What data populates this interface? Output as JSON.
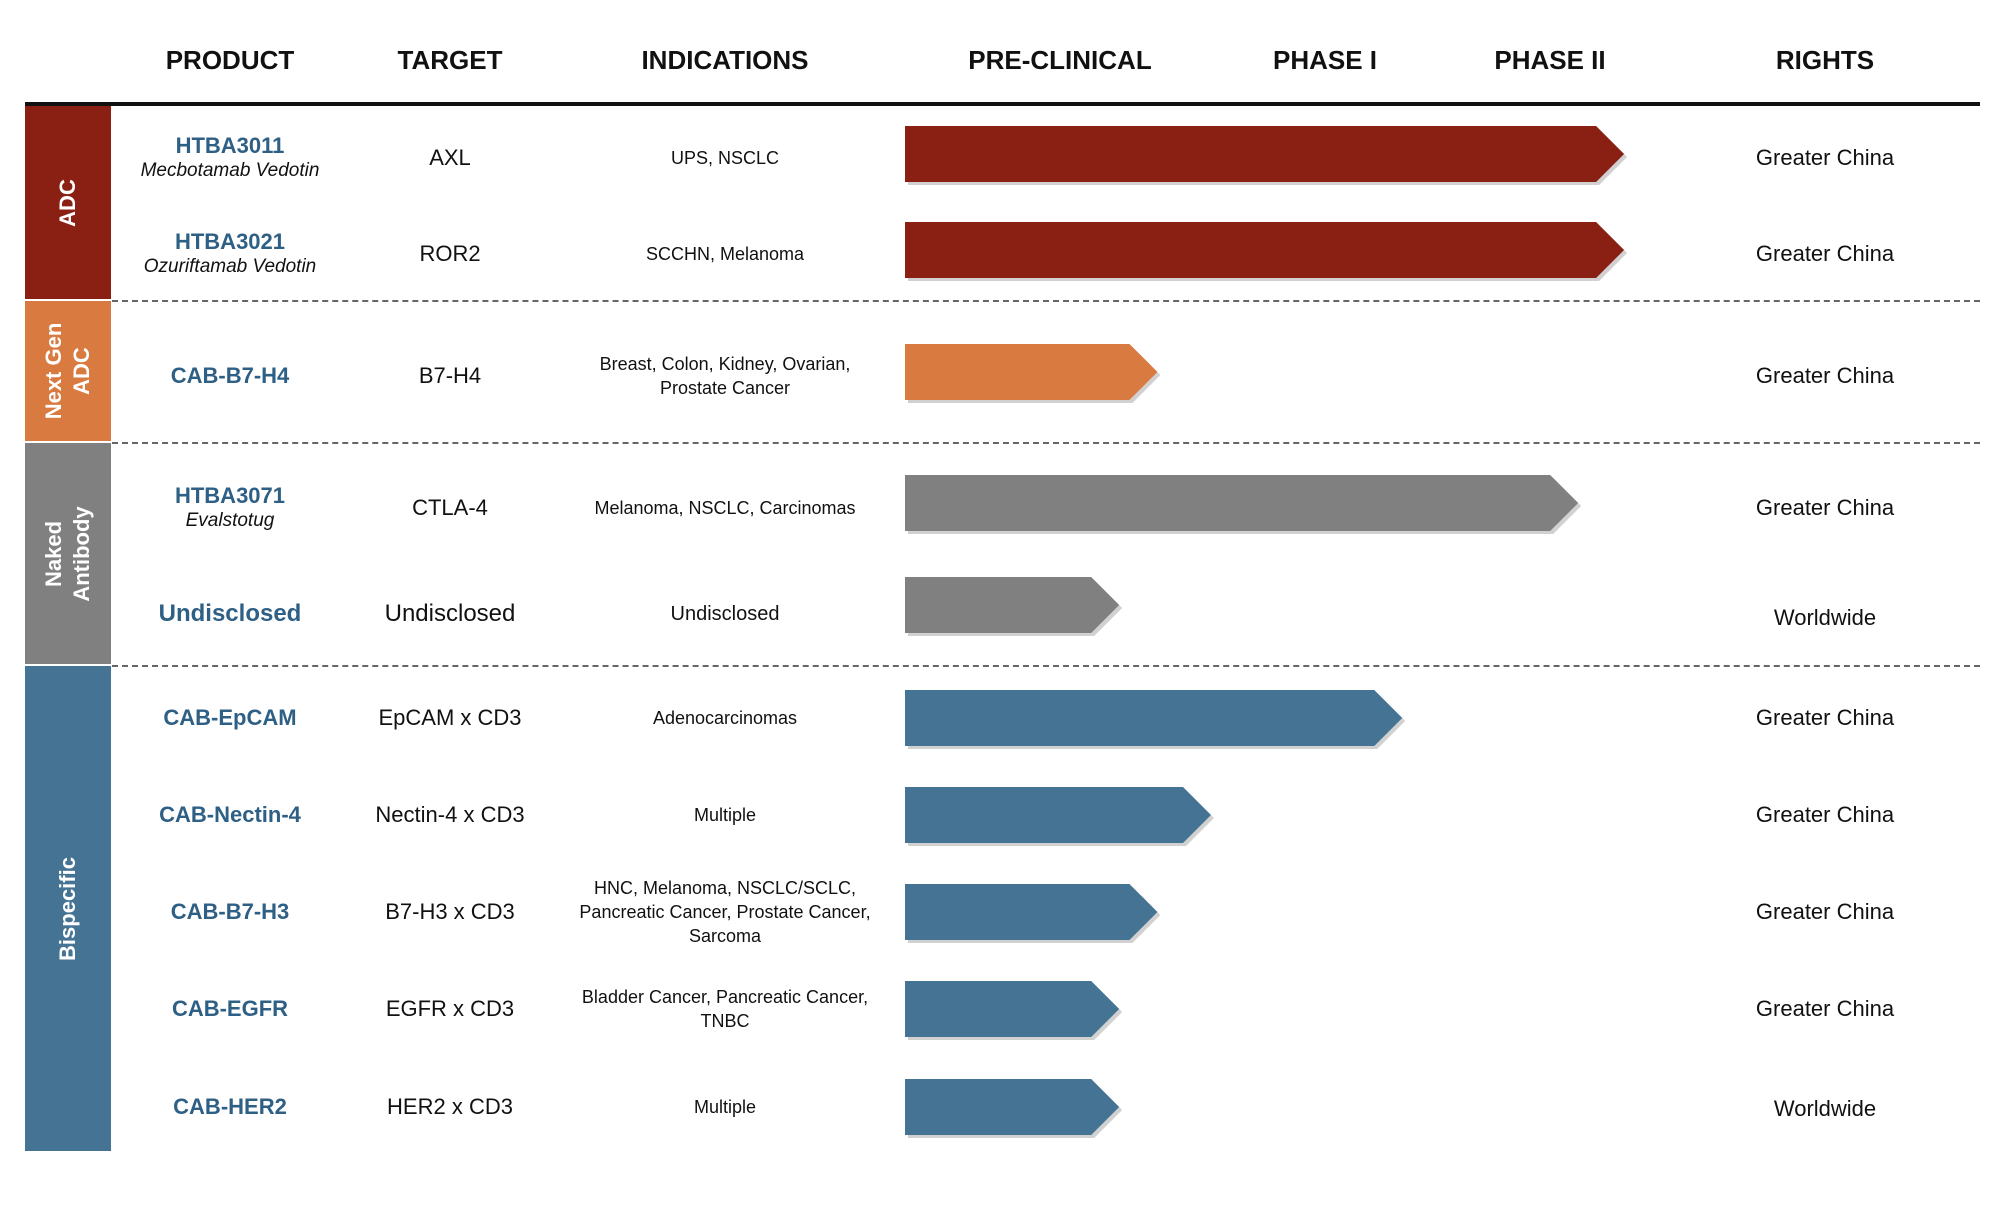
{
  "headers": {
    "product": "PRODUCT",
    "target": "TARGET",
    "indications": "INDICATIONS",
    "preclinical": "PRE-CLINICAL",
    "phase1": "PHASE I",
    "phase2": "PHASE II",
    "rights": "RIGHTS"
  },
  "categories": [
    {
      "line1": "ADC",
      "line2": "",
      "color": "#8a2014"
    },
    {
      "line1": "Next Gen",
      "line2": "ADC",
      "color": "#d97a40"
    },
    {
      "line1": "Naked",
      "line2": "Antibody",
      "color": "#808080"
    },
    {
      "line1": "Bispecific",
      "line2": "",
      "color": "#457394"
    }
  ],
  "rows": [
    {
      "product": "HTBA3011",
      "subtitle": "Mecbotamab Vedotin",
      "target": "AXL",
      "indications": "UPS, NSCLC",
      "rights": "Greater China",
      "progress": 0.94,
      "color": "#8a2014"
    },
    {
      "product": "HTBA3021",
      "subtitle": "Ozuriftamab Vedotin",
      "target": "ROR2",
      "indications": "SCCHN, Melanoma",
      "rights": "Greater China",
      "progress": 0.94,
      "color": "#8a2014"
    },
    {
      "product": "CAB-B7-H4",
      "subtitle": "",
      "target": "B7-H4",
      "indications": "Breast, Colon, Kidney, Ovarian, Prostate Cancer",
      "rights": "Greater China",
      "progress": 0.33,
      "color": "#d97a40"
    },
    {
      "product": "HTBA3071",
      "subtitle": "Evalstotug",
      "target": "CTLA-4",
      "indications": "Melanoma, NSCLC, Carcinomas",
      "rights": "Greater China",
      "progress": 0.88,
      "color": "#808080"
    },
    {
      "product": "Undisclosed",
      "subtitle": "",
      "target": "Undisclosed",
      "indications": "Undisclosed",
      "rights": "Worldwide",
      "progress": 0.28,
      "color": "#808080"
    },
    {
      "product": "CAB-EpCAM",
      "subtitle": "",
      "target": "EpCAM x CD3",
      "indications": "Adenocarcinomas",
      "rights": "Greater China",
      "progress": 0.65,
      "color": "#457394"
    },
    {
      "product": "CAB-Nectin-4",
      "subtitle": "",
      "target": "Nectin-4 x CD3",
      "indications": "Multiple",
      "rights": "Greater China",
      "progress": 0.4,
      "color": "#457394"
    },
    {
      "product": "CAB-B7-H3",
      "subtitle": "",
      "target": "B7-H3 x CD3",
      "indications": "HNC, Melanoma, NSCLC/SCLC, Pancreatic Cancer, Prostate Cancer, Sarcoma",
      "rights": "Greater China",
      "progress": 0.33,
      "color": "#457394"
    },
    {
      "product": "CAB-EGFR",
      "subtitle": "",
      "target": "EGFR x CD3",
      "indications": "Bladder Cancer, Pancreatic Cancer, TNBC",
      "rights": "Greater China",
      "progress": 0.28,
      "color": "#457394"
    },
    {
      "product": "CAB-HER2",
      "subtitle": "",
      "target": "HER2 x CD3",
      "indications": "Multiple",
      "rights": "Worldwide",
      "progress": 0.28,
      "color": "#457394"
    }
  ]
}
